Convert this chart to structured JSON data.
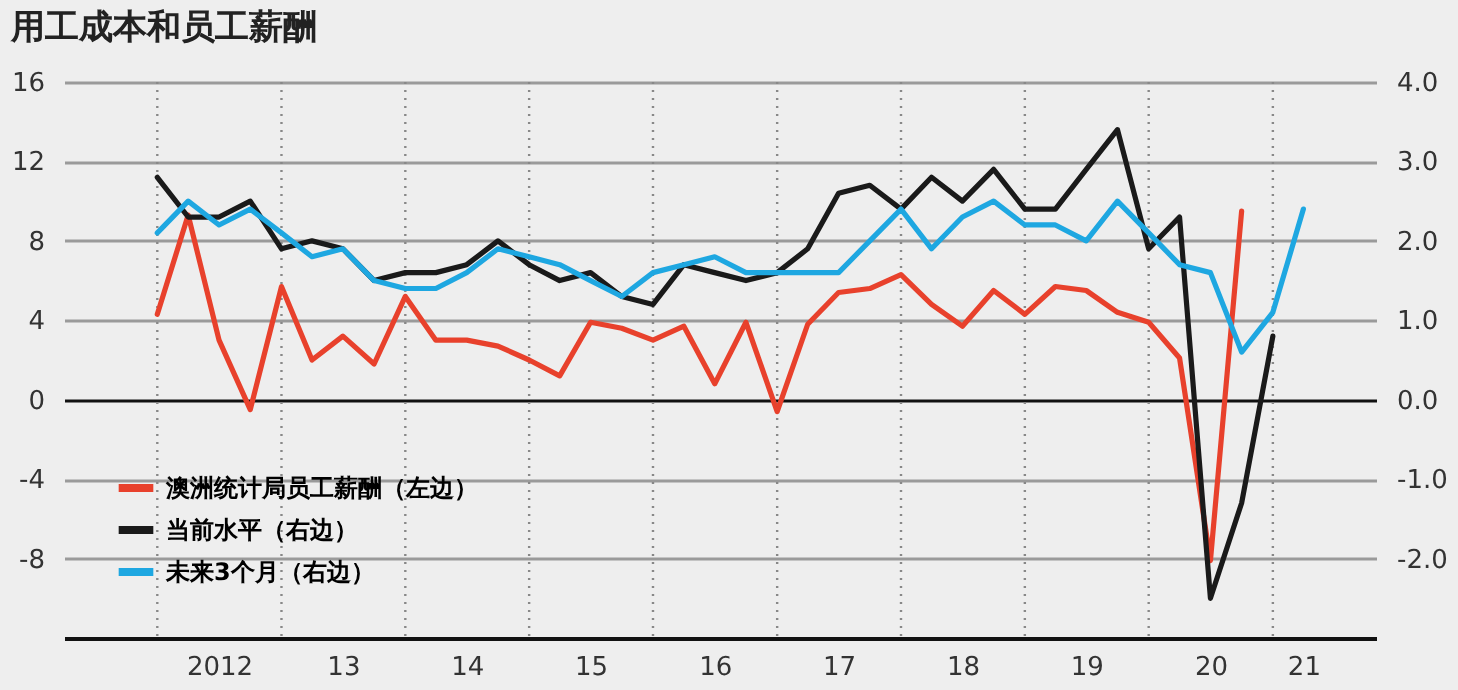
{
  "chart_data": {
    "type": "line",
    "title": "用工成本和员工薪酬",
    "xlim": [
      "2011-04",
      "2021-11"
    ],
    "xticks": [
      {
        "value": "2012-01",
        "label": null
      },
      {
        "value": "2012-07",
        "label": "2012"
      },
      {
        "value": "2013-01",
        "label": null
      },
      {
        "value": "2013-07",
        "label": "13"
      },
      {
        "value": "2014-01",
        "label": null
      },
      {
        "value": "2014-07",
        "label": "14"
      },
      {
        "value": "2015-01",
        "label": null
      },
      {
        "value": "2015-07",
        "label": "15"
      },
      {
        "value": "2016-01",
        "label": null
      },
      {
        "value": "2016-07",
        "label": "16"
      },
      {
        "value": "2017-01",
        "label": null
      },
      {
        "value": "2017-07",
        "label": "17"
      },
      {
        "value": "2018-01",
        "label": null
      },
      {
        "value": "2018-07",
        "label": "18"
      },
      {
        "value": "2019-01",
        "label": null
      },
      {
        "value": "2019-07",
        "label": "19"
      },
      {
        "value": "2020-01",
        "label": null
      },
      {
        "value": "2020-07",
        "label": "20"
      },
      {
        "value": "2021-01",
        "label": null
      },
      {
        "value": "2021-04",
        "label": "21"
      }
    ],
    "ylim": [
      -12,
      16
    ],
    "yticks": [
      16,
      12,
      8,
      4,
      0,
      -4,
      -8
    ],
    "y2lim": [
      -3,
      4
    ],
    "y2ticks": [
      {
        "value": 4,
        "label": "4.0"
      },
      {
        "value": 3,
        "label": "3.0"
      },
      {
        "value": 2,
        "label": "2.0"
      },
      {
        "value": 1,
        "label": "1.0"
      },
      {
        "value": 0,
        "label": "0.0"
      },
      {
        "value": -1,
        "label": "-1.0"
      },
      {
        "value": -2,
        "label": "-2.0"
      }
    ],
    "grid": true,
    "legend": "bottom left",
    "line_style": "solid",
    "series": [
      {
        "name": "澳洲统计局员工薪酬（左边）",
        "color": "#e8412c",
        "x": [
          "2012-01",
          "2012-04",
          "2012-07",
          "2012-10",
          "2013-01",
          "2013-04",
          "2013-07",
          "2013-10",
          "2014-01",
          "2014-04",
          "2014-07",
          "2014-10",
          "2015-01",
          "2015-04",
          "2015-07",
          "2015-10",
          "2016-01",
          "2016-04",
          "2016-07",
          "2016-10",
          "2017-01",
          "2017-04",
          "2017-07",
          "2017-10",
          "2018-01",
          "2018-04",
          "2018-07",
          "2018-10",
          "2019-01",
          "2019-04",
          "2019-07",
          "2019-10",
          "2020-01",
          "2020-04",
          "2020-07",
          "2020-10"
        ],
        "values": [
          4.3,
          9.3,
          3.0,
          -0.5,
          5.7,
          2.0,
          3.2,
          1.8,
          5.2,
          3.0,
          3.0,
          2.7,
          2.0,
          1.2,
          3.9,
          3.6,
          3.0,
          3.7,
          0.8,
          3.9,
          -0.6,
          3.8,
          5.4,
          5.6,
          6.3,
          4.8,
          3.7,
          5.5,
          4.3,
          5.7,
          5.5,
          4.4,
          3.9,
          2.1,
          -8.1,
          9.5
        ]
      },
      {
        "name": "当前水平（右边）",
        "color": "#1a1a1a",
        "axis": "y2",
        "x": [
          "2012-01",
          "2012-04",
          "2012-07",
          "2012-10",
          "2013-01",
          "2013-04",
          "2013-07",
          "2013-10",
          "2014-01",
          "2014-04",
          "2014-07",
          "2014-10",
          "2015-01",
          "2015-04",
          "2015-07",
          "2015-10",
          "2016-01",
          "2016-04",
          "2016-07",
          "2016-10",
          "2017-01",
          "2017-04",
          "2017-07",
          "2017-10",
          "2018-01",
          "2018-04",
          "2018-07",
          "2018-10",
          "2019-01",
          "2019-04",
          "2019-07",
          "2019-10",
          "2020-01",
          "2020-04",
          "2020-07",
          "2020-10",
          "2021-01"
        ],
        "values": [
          2.8,
          2.3,
          2.3,
          2.5,
          1.9,
          2.0,
          1.9,
          1.5,
          1.6,
          1.6,
          1.7,
          2.0,
          1.7,
          1.5,
          1.6,
          1.3,
          1.2,
          1.7,
          1.6,
          1.5,
          1.6,
          1.9,
          2.6,
          2.7,
          2.4,
          2.8,
          2.5,
          2.9,
          2.4,
          2.4,
          2.9,
          3.4,
          1.9,
          2.3,
          -2.5,
          -1.3,
          0.8
        ]
      },
      {
        "name": "未来3个月（右边）",
        "color": "#1ea7e1",
        "axis": "y2",
        "x": [
          "2012-01",
          "2012-04",
          "2012-07",
          "2012-10",
          "2013-01",
          "2013-04",
          "2013-07",
          "2013-10",
          "2014-01",
          "2014-04",
          "2014-07",
          "2014-10",
          "2015-01",
          "2015-04",
          "2015-07",
          "2015-10",
          "2016-01",
          "2016-04",
          "2016-07",
          "2016-10",
          "2017-01",
          "2017-04",
          "2017-07",
          "2017-10",
          "2018-01",
          "2018-04",
          "2018-07",
          "2018-10",
          "2019-01",
          "2019-04",
          "2019-07",
          "2019-10",
          "2020-01",
          "2020-04",
          "2020-07",
          "2020-10",
          "2021-01",
          "2021-04"
        ],
        "values": [
          2.1,
          2.5,
          2.2,
          2.4,
          2.1,
          1.8,
          1.9,
          1.5,
          1.4,
          1.4,
          1.6,
          1.9,
          1.8,
          1.7,
          1.5,
          1.3,
          1.6,
          1.7,
          1.8,
          1.6,
          1.6,
          1.6,
          1.6,
          2.0,
          2.4,
          1.9,
          2.3,
          2.5,
          2.2,
          2.2,
          2.0,
          2.5,
          2.1,
          1.7,
          1.6,
          0.6,
          1.1,
          2.4
        ]
      }
    ]
  }
}
